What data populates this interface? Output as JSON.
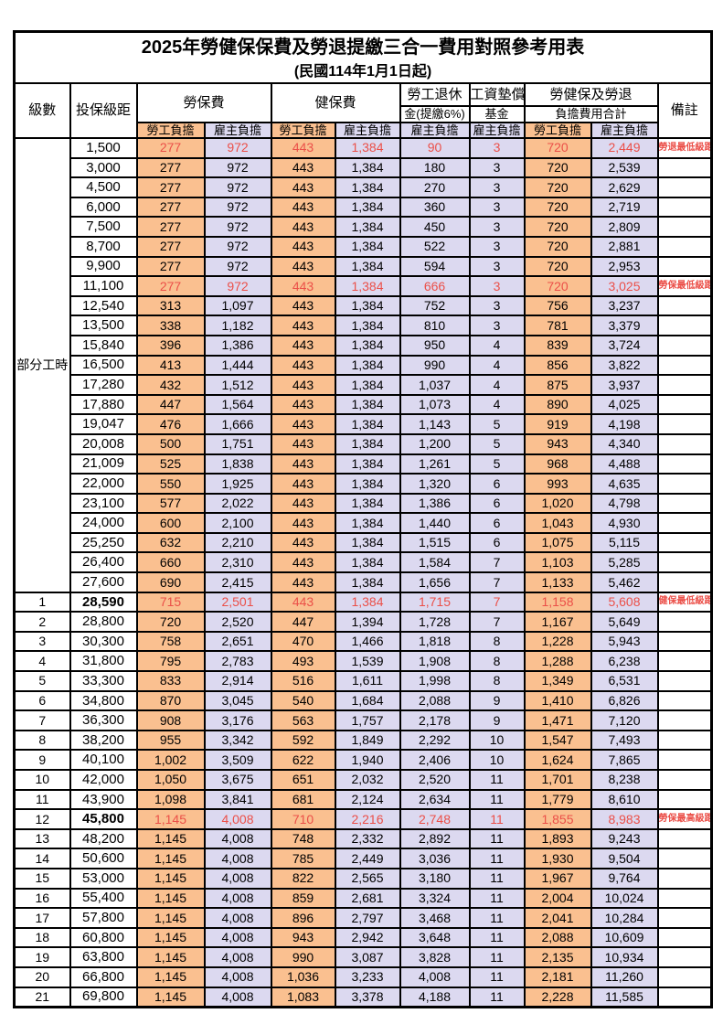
{
  "title": "2025年勞健保保費及勞退提繳三合一費用對照參考用表",
  "subtitle": "(民國114年1月1日起)",
  "header": {
    "level": "級數",
    "bracket": "投保級距",
    "labor_ins": "勞保費",
    "health_ins": "健保費",
    "pension_line1": "勞工退休",
    "pension_line2": "金(提繳6%)",
    "wage_fund_line1": "工資墊償",
    "wage_fund_line2": "基金",
    "total_line1": "勞健保及勞退",
    "total_line2": "負擔費用合計",
    "note": "備註",
    "employee": "勞工負擔",
    "employer": "雇主負擔"
  },
  "part_time_label": "部分工時",
  "part_time_rowspan": 23,
  "column_kinds": [
    "emp",
    "er",
    "emp",
    "er",
    "er",
    "er",
    "emp",
    "er"
  ],
  "colors": {
    "employee_bg": "#FAC090",
    "employer_bg": "#DCD9F0",
    "highlight_text": "#EB4F48",
    "border": "#000000"
  },
  "rows": [
    {
      "level": "",
      "bracket": "1,500",
      "values": [
        "277",
        "972",
        "443",
        "1,384",
        "90",
        "3",
        "720",
        "2,449"
      ],
      "note": "勞退最低級距",
      "highlight": true,
      "bold": false
    },
    {
      "level": "",
      "bracket": "3,000",
      "values": [
        "277",
        "972",
        "443",
        "1,384",
        "180",
        "3",
        "720",
        "2,539"
      ],
      "note": "",
      "highlight": false,
      "bold": false
    },
    {
      "level": "",
      "bracket": "4,500",
      "values": [
        "277",
        "972",
        "443",
        "1,384",
        "270",
        "3",
        "720",
        "2,629"
      ],
      "note": "",
      "highlight": false,
      "bold": false
    },
    {
      "level": "",
      "bracket": "6,000",
      "values": [
        "277",
        "972",
        "443",
        "1,384",
        "360",
        "3",
        "720",
        "2,719"
      ],
      "note": "",
      "highlight": false,
      "bold": false
    },
    {
      "level": "",
      "bracket": "7,500",
      "values": [
        "277",
        "972",
        "443",
        "1,384",
        "450",
        "3",
        "720",
        "2,809"
      ],
      "note": "",
      "highlight": false,
      "bold": false
    },
    {
      "level": "",
      "bracket": "8,700",
      "values": [
        "277",
        "972",
        "443",
        "1,384",
        "522",
        "3",
        "720",
        "2,881"
      ],
      "note": "",
      "highlight": false,
      "bold": false
    },
    {
      "level": "",
      "bracket": "9,900",
      "values": [
        "277",
        "972",
        "443",
        "1,384",
        "594",
        "3",
        "720",
        "2,953"
      ],
      "note": "",
      "highlight": false,
      "bold": false
    },
    {
      "level": "",
      "bracket": "11,100",
      "values": [
        "277",
        "972",
        "443",
        "1,384",
        "666",
        "3",
        "720",
        "3,025"
      ],
      "note": "勞保最低級距",
      "highlight": true,
      "bold": false
    },
    {
      "level": "",
      "bracket": "12,540",
      "values": [
        "313",
        "1,097",
        "443",
        "1,384",
        "752",
        "3",
        "756",
        "3,237"
      ],
      "note": "",
      "highlight": false,
      "bold": false
    },
    {
      "level": "",
      "bracket": "13,500",
      "values": [
        "338",
        "1,182",
        "443",
        "1,384",
        "810",
        "3",
        "781",
        "3,379"
      ],
      "note": "",
      "highlight": false,
      "bold": false
    },
    {
      "level": "",
      "bracket": "15,840",
      "values": [
        "396",
        "1,386",
        "443",
        "1,384",
        "950",
        "4",
        "839",
        "3,724"
      ],
      "note": "",
      "highlight": false,
      "bold": false
    },
    {
      "level": "",
      "bracket": "16,500",
      "values": [
        "413",
        "1,444",
        "443",
        "1,384",
        "990",
        "4",
        "856",
        "3,822"
      ],
      "note": "",
      "highlight": false,
      "bold": false
    },
    {
      "level": "",
      "bracket": "17,280",
      "values": [
        "432",
        "1,512",
        "443",
        "1,384",
        "1,037",
        "4",
        "875",
        "3,937"
      ],
      "note": "",
      "highlight": false,
      "bold": false
    },
    {
      "level": "",
      "bracket": "17,880",
      "values": [
        "447",
        "1,564",
        "443",
        "1,384",
        "1,073",
        "4",
        "890",
        "4,025"
      ],
      "note": "",
      "highlight": false,
      "bold": false
    },
    {
      "level": "",
      "bracket": "19,047",
      "values": [
        "476",
        "1,666",
        "443",
        "1,384",
        "1,143",
        "5",
        "919",
        "4,198"
      ],
      "note": "",
      "highlight": false,
      "bold": false
    },
    {
      "level": "",
      "bracket": "20,008",
      "values": [
        "500",
        "1,751",
        "443",
        "1,384",
        "1,200",
        "5",
        "943",
        "4,340"
      ],
      "note": "",
      "highlight": false,
      "bold": false
    },
    {
      "level": "",
      "bracket": "21,009",
      "values": [
        "525",
        "1,838",
        "443",
        "1,384",
        "1,261",
        "5",
        "968",
        "4,488"
      ],
      "note": "",
      "highlight": false,
      "bold": false
    },
    {
      "level": "",
      "bracket": "22,000",
      "values": [
        "550",
        "1,925",
        "443",
        "1,384",
        "1,320",
        "6",
        "993",
        "4,635"
      ],
      "note": "",
      "highlight": false,
      "bold": false
    },
    {
      "level": "",
      "bracket": "23,100",
      "values": [
        "577",
        "2,022",
        "443",
        "1,384",
        "1,386",
        "6",
        "1,020",
        "4,798"
      ],
      "note": "",
      "highlight": false,
      "bold": false
    },
    {
      "level": "",
      "bracket": "24,000",
      "values": [
        "600",
        "2,100",
        "443",
        "1,384",
        "1,440",
        "6",
        "1,043",
        "4,930"
      ],
      "note": "",
      "highlight": false,
      "bold": false
    },
    {
      "level": "",
      "bracket": "25,250",
      "values": [
        "632",
        "2,210",
        "443",
        "1,384",
        "1,515",
        "6",
        "1,075",
        "5,115"
      ],
      "note": "",
      "highlight": false,
      "bold": false
    },
    {
      "level": "",
      "bracket": "26,400",
      "values": [
        "660",
        "2,310",
        "443",
        "1,384",
        "1,584",
        "7",
        "1,103",
        "5,285"
      ],
      "note": "",
      "highlight": false,
      "bold": false
    },
    {
      "level": "",
      "bracket": "27,600",
      "values": [
        "690",
        "2,415",
        "443",
        "1,384",
        "1,656",
        "7",
        "1,133",
        "5,462"
      ],
      "note": "",
      "highlight": false,
      "bold": false
    },
    {
      "level": "1",
      "bracket": "28,590",
      "values": [
        "715",
        "2,501",
        "443",
        "1,384",
        "1,715",
        "7",
        "1,158",
        "5,608"
      ],
      "note": "健保最低級距",
      "highlight": true,
      "bold": true
    },
    {
      "level": "2",
      "bracket": "28,800",
      "values": [
        "720",
        "2,520",
        "447",
        "1,394",
        "1,728",
        "7",
        "1,167",
        "5,649"
      ],
      "note": "",
      "highlight": false,
      "bold": false
    },
    {
      "level": "3",
      "bracket": "30,300",
      "values": [
        "758",
        "2,651",
        "470",
        "1,466",
        "1,818",
        "8",
        "1,228",
        "5,943"
      ],
      "note": "",
      "highlight": false,
      "bold": false
    },
    {
      "level": "4",
      "bracket": "31,800",
      "values": [
        "795",
        "2,783",
        "493",
        "1,539",
        "1,908",
        "8",
        "1,288",
        "6,238"
      ],
      "note": "",
      "highlight": false,
      "bold": false
    },
    {
      "level": "5",
      "bracket": "33,300",
      "values": [
        "833",
        "2,914",
        "516",
        "1,611",
        "1,998",
        "8",
        "1,349",
        "6,531"
      ],
      "note": "",
      "highlight": false,
      "bold": false
    },
    {
      "level": "6",
      "bracket": "34,800",
      "values": [
        "870",
        "3,045",
        "540",
        "1,684",
        "2,088",
        "9",
        "1,410",
        "6,826"
      ],
      "note": "",
      "highlight": false,
      "bold": false
    },
    {
      "level": "7",
      "bracket": "36,300",
      "values": [
        "908",
        "3,176",
        "563",
        "1,757",
        "2,178",
        "9",
        "1,471",
        "7,120"
      ],
      "note": "",
      "highlight": false,
      "bold": false
    },
    {
      "level": "8",
      "bracket": "38,200",
      "values": [
        "955",
        "3,342",
        "592",
        "1,849",
        "2,292",
        "10",
        "1,547",
        "7,493"
      ],
      "note": "",
      "highlight": false,
      "bold": false
    },
    {
      "level": "9",
      "bracket": "40,100",
      "values": [
        "1,002",
        "3,509",
        "622",
        "1,940",
        "2,406",
        "10",
        "1,624",
        "7,865"
      ],
      "note": "",
      "highlight": false,
      "bold": false
    },
    {
      "level": "10",
      "bracket": "42,000",
      "values": [
        "1,050",
        "3,675",
        "651",
        "2,032",
        "2,520",
        "11",
        "1,701",
        "8,238"
      ],
      "note": "",
      "highlight": false,
      "bold": false
    },
    {
      "level": "11",
      "bracket": "43,900",
      "values": [
        "1,098",
        "3,841",
        "681",
        "2,124",
        "2,634",
        "11",
        "1,779",
        "8,610"
      ],
      "note": "",
      "highlight": false,
      "bold": false
    },
    {
      "level": "12",
      "bracket": "45,800",
      "values": [
        "1,145",
        "4,008",
        "710",
        "2,216",
        "2,748",
        "11",
        "1,855",
        "8,983"
      ],
      "note": "勞保最高級距",
      "highlight": true,
      "bold": true
    },
    {
      "level": "13",
      "bracket": "48,200",
      "values": [
        "1,145",
        "4,008",
        "748",
        "2,332",
        "2,892",
        "11",
        "1,893",
        "9,243"
      ],
      "note": "",
      "highlight": false,
      "bold": false
    },
    {
      "level": "14",
      "bracket": "50,600",
      "values": [
        "1,145",
        "4,008",
        "785",
        "2,449",
        "3,036",
        "11",
        "1,930",
        "9,504"
      ],
      "note": "",
      "highlight": false,
      "bold": false
    },
    {
      "level": "15",
      "bracket": "53,000",
      "values": [
        "1,145",
        "4,008",
        "822",
        "2,565",
        "3,180",
        "11",
        "1,967",
        "9,764"
      ],
      "note": "",
      "highlight": false,
      "bold": false
    },
    {
      "level": "16",
      "bracket": "55,400",
      "values": [
        "1,145",
        "4,008",
        "859",
        "2,681",
        "3,324",
        "11",
        "2,004",
        "10,024"
      ],
      "note": "",
      "highlight": false,
      "bold": false
    },
    {
      "level": "17",
      "bracket": "57,800",
      "values": [
        "1,145",
        "4,008",
        "896",
        "2,797",
        "3,468",
        "11",
        "2,041",
        "10,284"
      ],
      "note": "",
      "highlight": false,
      "bold": false
    },
    {
      "level": "18",
      "bracket": "60,800",
      "values": [
        "1,145",
        "4,008",
        "943",
        "2,942",
        "3,648",
        "11",
        "2,088",
        "10,609"
      ],
      "note": "",
      "highlight": false,
      "bold": false
    },
    {
      "level": "19",
      "bracket": "63,800",
      "values": [
        "1,145",
        "4,008",
        "990",
        "3,087",
        "3,828",
        "11",
        "2,135",
        "10,934"
      ],
      "note": "",
      "highlight": false,
      "bold": false
    },
    {
      "level": "20",
      "bracket": "66,800",
      "values": [
        "1,145",
        "4,008",
        "1,036",
        "3,233",
        "4,008",
        "11",
        "2,181",
        "11,260"
      ],
      "note": "",
      "highlight": false,
      "bold": false
    },
    {
      "level": "21",
      "bracket": "69,800",
      "values": [
        "1,145",
        "4,008",
        "1,083",
        "3,378",
        "4,188",
        "11",
        "2,228",
        "11,585"
      ],
      "note": "",
      "highlight": false,
      "bold": false
    }
  ]
}
